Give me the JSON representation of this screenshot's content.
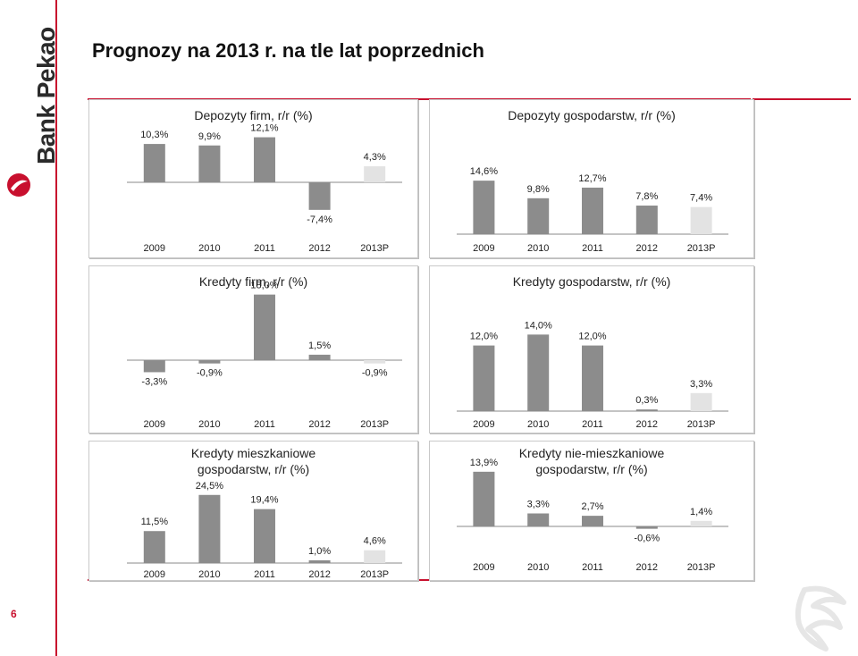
{
  "brand": {
    "name": "Bank Pekao",
    "color": "#c8102e"
  },
  "page": {
    "title": "Prognozy na 2013 r. na tle lat poprzednich",
    "number": "6"
  },
  "colors": {
    "bar_dark": "#8c8c8c",
    "bar_forecast": "#e3e3e3",
    "axis": "#888888"
  },
  "chart_data": [
    {
      "id": "depozyty-firm",
      "type": "bar",
      "title": "Depozyty firm, r/r (%)",
      "categories": [
        "2009",
        "2010",
        "2011",
        "2012",
        "2013P"
      ],
      "values": [
        10.3,
        9.9,
        12.1,
        -7.4,
        4.3
      ],
      "labels": [
        "10,3%",
        "9,9%",
        "12,1%",
        "-7,4%",
        "4,3%"
      ],
      "ylim": [
        -10,
        14
      ],
      "grid": false,
      "legend": "none"
    },
    {
      "id": "depozyty-gospodarstw",
      "type": "bar",
      "title": "Depozyty gospodarstw, r/r (%)",
      "categories": [
        "2009",
        "2010",
        "2011",
        "2012",
        "2013P"
      ],
      "values": [
        14.6,
        9.8,
        12.7,
        7.8,
        7.4
      ],
      "labels": [
        "14,6%",
        "9,8%",
        "12,7%",
        "7,8%",
        "7,4%"
      ],
      "ylim": [
        0,
        20
      ],
      "grid": false,
      "legend": "none"
    },
    {
      "id": "kredyty-firm",
      "type": "bar",
      "title": "Kredyty firm, r/r (%)",
      "categories": [
        "2009",
        "2010",
        "2011",
        "2012",
        "2013P"
      ],
      "values": [
        -3.3,
        -0.9,
        18.0,
        1.5,
        -0.9
      ],
      "labels": [
        "-3,3%",
        "-0,9%",
        "18,0%",
        "1,5%",
        "-0,9%"
      ],
      "ylim": [
        -6,
        20
      ],
      "grid": false,
      "legend": "none"
    },
    {
      "id": "kredyty-gospodarstw",
      "type": "bar",
      "title": "Kredyty gospodarstw, r/r (%)",
      "categories": [
        "2009",
        "2010",
        "2011",
        "2012",
        "2013P"
      ],
      "values": [
        12.0,
        14.0,
        12.0,
        0.3,
        3.3
      ],
      "labels": [
        "12,0%",
        "14,0%",
        "12,0%",
        "0,3%",
        "3,3%"
      ],
      "ylim": [
        0,
        17
      ],
      "grid": false,
      "legend": "none"
    },
    {
      "id": "kredyty-mieszkaniowe",
      "type": "bar",
      "title": "Kredyty mieszkaniowe",
      "subtitle": "gospodarstw, r/r (%)",
      "categories": [
        "2009",
        "2010",
        "2011",
        "2012",
        "2013P"
      ],
      "values": [
        11.5,
        24.5,
        19.4,
        1.0,
        4.6
      ],
      "labels": [
        "11,5%",
        "24,5%",
        "19,4%",
        "1,0%",
        "4,6%"
      ],
      "ylim": [
        0,
        27
      ],
      "grid": false,
      "legend": "none"
    },
    {
      "id": "kredyty-nie-mieszkaniowe",
      "type": "bar",
      "title": "Kredyty nie-mieszkaniowe",
      "subtitle": "gospodarstw, r/r (%)",
      "categories": [
        "2009",
        "2010",
        "2011",
        "2012",
        "2013P"
      ],
      "values": [
        13.9,
        3.3,
        2.7,
        -0.6,
        1.4
      ],
      "labels": [
        "13,9%",
        "3,3%",
        "2,7%",
        "-0,6%",
        "1,4%"
      ],
      "ylim": [
        -3,
        17
      ],
      "grid": false,
      "legend": "none"
    }
  ]
}
